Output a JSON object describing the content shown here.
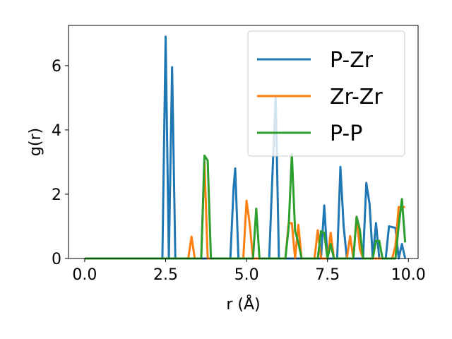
{
  "chart_data": {
    "type": "line",
    "title": "",
    "xlabel": "r (Å)",
    "ylabel": "g(r)",
    "xlim": [
      -0.5,
      10.3
    ],
    "ylim": [
      0,
      7.25
    ],
    "xticks": [
      0.0,
      2.5,
      5.0,
      7.5,
      10.0
    ],
    "xtick_labels": [
      "0.0",
      "2.5",
      "5.0",
      "7.5",
      "10.0"
    ],
    "yticks": [
      0,
      2,
      4,
      6
    ],
    "ytick_labels": [
      "0",
      "2",
      "4",
      "6"
    ],
    "grid": false,
    "legend_position": "top-right",
    "series": [
      {
        "name": "P-Zr",
        "color": "#1f77b4",
        "points": [
          [
            0.0,
            0
          ],
          [
            2.4,
            0
          ],
          [
            2.5,
            6.9
          ],
          [
            2.6,
            0
          ],
          [
            2.7,
            5.95
          ],
          [
            2.8,
            0
          ],
          [
            4.5,
            0
          ],
          [
            4.6,
            2.2
          ],
          [
            4.65,
            2.8
          ],
          [
            4.75,
            0
          ],
          [
            5.7,
            0
          ],
          [
            5.8,
            2.6
          ],
          [
            5.9,
            5.05
          ],
          [
            6.0,
            0
          ],
          [
            7.3,
            0
          ],
          [
            7.4,
            1.65
          ],
          [
            7.5,
            0
          ],
          [
            7.8,
            0
          ],
          [
            7.9,
            2.85
          ],
          [
            8.0,
            1.0
          ],
          [
            8.1,
            0
          ],
          [
            8.6,
            0
          ],
          [
            8.7,
            2.35
          ],
          [
            8.8,
            1.7
          ],
          [
            8.9,
            0
          ],
          [
            9.0,
            1.1
          ],
          [
            9.1,
            0
          ],
          [
            9.3,
            0
          ],
          [
            9.4,
            1.0
          ],
          [
            9.6,
            0.95
          ],
          [
            9.7,
            0
          ],
          [
            9.8,
            0.45
          ],
          [
            9.9,
            0
          ]
        ]
      },
      {
        "name": "Zr-Zr",
        "color": "#ff7f0e",
        "points": [
          [
            0.0,
            0
          ],
          [
            3.2,
            0
          ],
          [
            3.3,
            0.68
          ],
          [
            3.4,
            0
          ],
          [
            3.6,
            0
          ],
          [
            3.7,
            3.0
          ],
          [
            3.8,
            0
          ],
          [
            4.9,
            0
          ],
          [
            5.0,
            1.8
          ],
          [
            5.1,
            1.05
          ],
          [
            5.2,
            0
          ],
          [
            6.2,
            0
          ],
          [
            6.3,
            1.1
          ],
          [
            6.4,
            1.1
          ],
          [
            6.5,
            0
          ],
          [
            6.6,
            1.05
          ],
          [
            6.7,
            0
          ],
          [
            7.1,
            0
          ],
          [
            7.2,
            0.88
          ],
          [
            7.3,
            0
          ],
          [
            7.5,
            0
          ],
          [
            7.6,
            0.8
          ],
          [
            7.7,
            0
          ],
          [
            8.1,
            0
          ],
          [
            8.2,
            0.7
          ],
          [
            8.3,
            0
          ],
          [
            8.4,
            1.3
          ],
          [
            8.5,
            0.3
          ],
          [
            8.6,
            0
          ],
          [
            9.5,
            0
          ],
          [
            9.6,
            0.4
          ],
          [
            9.7,
            1.6
          ],
          [
            9.9,
            1.6
          ]
        ]
      },
      {
        "name": "P-P",
        "color": "#2ca02c",
        "points": [
          [
            0.0,
            0
          ],
          [
            3.6,
            0
          ],
          [
            3.7,
            3.2
          ],
          [
            3.8,
            3.05
          ],
          [
            3.9,
            0
          ],
          [
            5.2,
            0
          ],
          [
            5.3,
            1.55
          ],
          [
            5.4,
            0
          ],
          [
            6.2,
            0
          ],
          [
            6.3,
            0.95
          ],
          [
            6.4,
            3.25
          ],
          [
            6.5,
            0.85
          ],
          [
            6.6,
            0.5
          ],
          [
            6.7,
            0
          ],
          [
            7.2,
            0
          ],
          [
            7.3,
            0.85
          ],
          [
            7.4,
            0.8
          ],
          [
            7.5,
            0
          ],
          [
            7.6,
            0.45
          ],
          [
            7.7,
            0
          ],
          [
            8.3,
            0
          ],
          [
            8.4,
            1.3
          ],
          [
            8.5,
            0.9
          ],
          [
            8.6,
            0
          ],
          [
            8.9,
            0
          ],
          [
            9.0,
            0.55
          ],
          [
            9.1,
            0.55
          ],
          [
            9.2,
            0
          ],
          [
            9.6,
            0
          ],
          [
            9.7,
            1.0
          ],
          [
            9.8,
            1.85
          ],
          [
            9.9,
            0.5
          ]
        ]
      }
    ]
  }
}
